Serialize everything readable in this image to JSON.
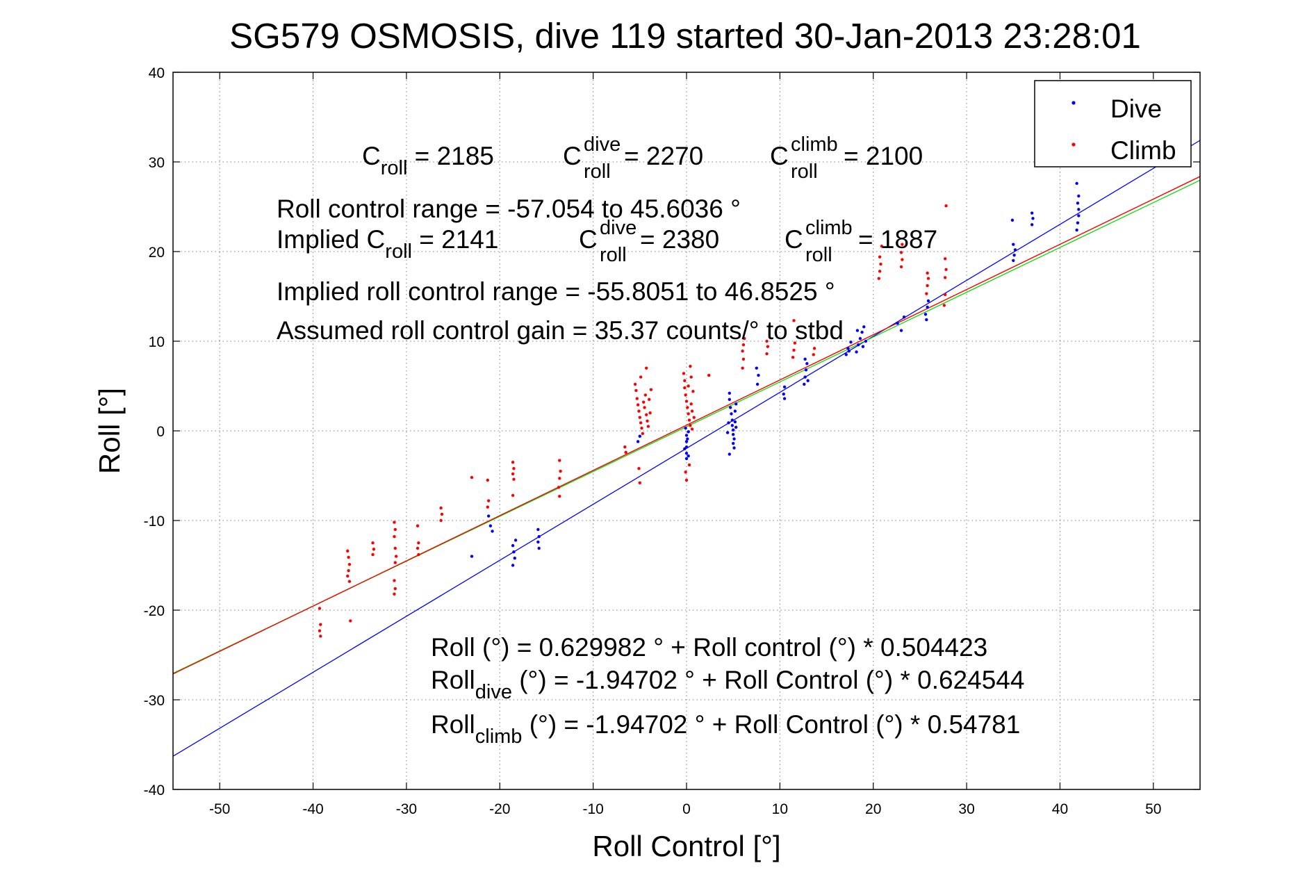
{
  "chart_data": {
    "type": "scatter",
    "title": "SG579 OSMOSIS, dive 119 started 30-Jan-2013 23:28:01",
    "xlabel": "Roll Control [°]",
    "ylabel": "Roll [°]",
    "xlim": [
      -55,
      55
    ],
    "ylim": [
      -40,
      40
    ],
    "xticks": [
      -50,
      -40,
      -30,
      -20,
      -10,
      0,
      10,
      20,
      30,
      40,
      50
    ],
    "yticks": [
      -40,
      -30,
      -20,
      -10,
      0,
      10,
      20,
      30,
      40
    ],
    "grid": true,
    "legend": {
      "position": "top-right",
      "entries": [
        {
          "label": "Dive",
          "color": "#0000ff"
        },
        {
          "label": "Climb",
          "color": "#ff0000"
        }
      ]
    },
    "series": [
      {
        "name": "Dive",
        "color": "#0000ff",
        "points": [
          [
            -23,
            -14
          ],
          [
            -21.2,
            -9.5
          ],
          [
            -21,
            -10.6
          ],
          [
            -20.8,
            -11.2
          ],
          [
            -18.6,
            -12.8
          ],
          [
            -18.5,
            -13.5
          ],
          [
            -18.4,
            -14.2
          ],
          [
            -18.6,
            -15.0
          ],
          [
            -18.3,
            -12.2
          ],
          [
            -15.9,
            -11.0
          ],
          [
            -15.8,
            -11.8
          ],
          [
            -15.9,
            -12.4
          ],
          [
            -15.8,
            -13.1
          ],
          [
            -5.2,
            -1.2
          ],
          [
            -5.0,
            -0.6
          ],
          [
            0,
            -0.5
          ],
          [
            0,
            -1.2
          ],
          [
            0,
            -1.8
          ],
          [
            0,
            -2.5
          ],
          [
            0,
            -3.1
          ],
          [
            -0.2,
            -2.0
          ],
          [
            0.2,
            -2.8
          ],
          [
            0.1,
            -0.9
          ],
          [
            -0.1,
            0.3
          ],
          [
            0.2,
            -0.1
          ],
          [
            4.6,
            4.2
          ],
          [
            4.6,
            3.5
          ],
          [
            4.7,
            2.6
          ],
          [
            4.8,
            1.9
          ],
          [
            4.9,
            1.2
          ],
          [
            4.9,
            0.6
          ],
          [
            5.0,
            0.1
          ],
          [
            5.0,
            -0.4
          ],
          [
            5.1,
            -0.9
          ],
          [
            5.0,
            -1.4
          ],
          [
            5.1,
            -1.9
          ],
          [
            5.2,
            2.2
          ],
          [
            5.2,
            1.0
          ],
          [
            5.3,
            0.4
          ],
          [
            4.4,
            -0.2
          ],
          [
            4.5,
            0.9
          ],
          [
            4.6,
            -2.6
          ],
          [
            5.3,
            3.0
          ],
          [
            7.6,
            5.2
          ],
          [
            7.7,
            6.2
          ],
          [
            7.5,
            7.0
          ],
          [
            10.4,
            4.1
          ],
          [
            10.5,
            4.9
          ],
          [
            10.5,
            3.6
          ],
          [
            12.6,
            5.2
          ],
          [
            12.7,
            6.0
          ],
          [
            12.8,
            6.8
          ],
          [
            12.9,
            7.5
          ],
          [
            12.7,
            8.0
          ],
          [
            13.0,
            5.6
          ],
          [
            17.1,
            8.5
          ],
          [
            17.3,
            9.2
          ],
          [
            17.6,
            9.9
          ],
          [
            17.4,
            8.9
          ],
          [
            18.2,
            8.8
          ],
          [
            18.4,
            9.6
          ],
          [
            18.6,
            10.3
          ],
          [
            18.8,
            11.0
          ],
          [
            19.0,
            11.6
          ],
          [
            18.3,
            11.2
          ],
          [
            18.9,
            9.4
          ],
          [
            19.2,
            10.0
          ],
          [
            22.6,
            12.0
          ],
          [
            23.0,
            11.2
          ],
          [
            23.3,
            12.7
          ],
          [
            25.6,
            13.0
          ],
          [
            25.8,
            13.8
          ],
          [
            25.9,
            14.5
          ],
          [
            25.7,
            12.4
          ],
          [
            35.0,
            19.0
          ],
          [
            35.1,
            19.6
          ],
          [
            35.2,
            20.2
          ],
          [
            35.0,
            20.8
          ],
          [
            34.9,
            23.5
          ],
          [
            37.0,
            23.0
          ],
          [
            37.1,
            23.7
          ],
          [
            37.0,
            24.3
          ],
          [
            41.8,
            22.4
          ],
          [
            41.9,
            23.2
          ],
          [
            42.0,
            24.0
          ],
          [
            42.0,
            24.7
          ],
          [
            41.9,
            25.4
          ],
          [
            42.0,
            26.2
          ],
          [
            41.8,
            27.6
          ]
        ]
      },
      {
        "name": "Climb",
        "color": "#ff0000",
        "points": [
          [
            -39.3,
            -19.8
          ],
          [
            -39.2,
            -21.6
          ],
          [
            -39.3,
            -22.3
          ],
          [
            -39.2,
            -22.9
          ],
          [
            -36.3,
            -13.4
          ],
          [
            -36.2,
            -14.1
          ],
          [
            -36.1,
            -14.9
          ],
          [
            -36.2,
            -15.6
          ],
          [
            -36.3,
            -16.2
          ],
          [
            -36.1,
            -16.8
          ],
          [
            -36.0,
            -21.2
          ],
          [
            -33.6,
            -12.5
          ],
          [
            -33.5,
            -13.2
          ],
          [
            -33.6,
            -13.8
          ],
          [
            -31.3,
            -10.2
          ],
          [
            -31.2,
            -11.0
          ],
          [
            -31.3,
            -11.8
          ],
          [
            -31.2,
            -13.1
          ],
          [
            -31.1,
            -14.0
          ],
          [
            -31.2,
            -14.7
          ],
          [
            -31.3,
            -16.7
          ],
          [
            -31.2,
            -17.6
          ],
          [
            -31.3,
            -18.2
          ],
          [
            -28.8,
            -10.6
          ],
          [
            -28.7,
            -12.5
          ],
          [
            -28.8,
            -13.1
          ],
          [
            -28.7,
            -13.8
          ],
          [
            -26.3,
            -8.6
          ],
          [
            -26.2,
            -9.3
          ],
          [
            -26.3,
            -10.0
          ],
          [
            -23.0,
            -5.2
          ],
          [
            -21.3,
            -5.5
          ],
          [
            -21.2,
            -7.8
          ],
          [
            -21.3,
            -8.5
          ],
          [
            -18.6,
            -3.5
          ],
          [
            -18.5,
            -4.2
          ],
          [
            -18.6,
            -4.8
          ],
          [
            -18.5,
            -5.4
          ],
          [
            -18.6,
            -7.2
          ],
          [
            -13.6,
            -3.3
          ],
          [
            -13.5,
            -4.5
          ],
          [
            -13.6,
            -5.3
          ],
          [
            -13.7,
            -6.3
          ],
          [
            -13.6,
            -7.3
          ],
          [
            -6.6,
            -1.8
          ],
          [
            -6.5,
            -2.4
          ],
          [
            -5.5,
            5.2
          ],
          [
            -5.4,
            4.5
          ],
          [
            -5.3,
            3.6
          ],
          [
            -5.2,
            2.9
          ],
          [
            -5.1,
            2.2
          ],
          [
            -5.0,
            1.5
          ],
          [
            -4.9,
            0.9
          ],
          [
            -4.8,
            0.3
          ],
          [
            -4.7,
            -0.3
          ],
          [
            -4.6,
            3.2
          ],
          [
            -4.5,
            2.6
          ],
          [
            -4.4,
            4.0
          ],
          [
            -4.3,
            1.8
          ],
          [
            -4.2,
            1.1
          ],
          [
            -4.1,
            0.5
          ],
          [
            -4.0,
            3.5
          ],
          [
            -4.3,
            7.0
          ],
          [
            -5.1,
            -4.2
          ],
          [
            -5.0,
            -5.8
          ],
          [
            -4.9,
            6.0
          ],
          [
            -3.9,
            2.0
          ],
          [
            -3.8,
            4.6
          ],
          [
            -0.3,
            6.4
          ],
          [
            -0.2,
            5.6
          ],
          [
            -0.2,
            4.8
          ],
          [
            -0.1,
            4.0
          ],
          [
            0.0,
            3.3
          ],
          [
            0.1,
            2.6
          ],
          [
            0.2,
            1.9
          ],
          [
            0.3,
            1.2
          ],
          [
            0.4,
            0.6
          ],
          [
            0.5,
            3.0
          ],
          [
            0.6,
            2.2
          ],
          [
            0.7,
            4.4
          ],
          [
            0.8,
            1.5
          ],
          [
            0.4,
            7.2
          ],
          [
            -0.1,
            -4.6
          ],
          [
            0.0,
            -5.5
          ],
          [
            0.3,
            -3.8
          ],
          [
            0.2,
            5.0
          ],
          [
            0.6,
            0.2
          ],
          [
            0.5,
            6.0
          ],
          [
            2.4,
            6.2
          ],
          [
            6.0,
            7.0
          ],
          [
            6.1,
            8.0
          ],
          [
            6.0,
            8.9
          ],
          [
            6.1,
            9.6
          ],
          [
            6.2,
            10.3
          ],
          [
            8.6,
            8.6
          ],
          [
            8.7,
            9.4
          ],
          [
            8.6,
            10.0
          ],
          [
            11.4,
            8.2
          ],
          [
            11.5,
            9.0
          ],
          [
            11.6,
            9.8
          ],
          [
            11.5,
            12.3
          ],
          [
            13.6,
            8.5
          ],
          [
            13.7,
            9.2
          ],
          [
            20.6,
            17.0
          ],
          [
            20.7,
            17.8
          ],
          [
            20.8,
            18.6
          ],
          [
            20.7,
            19.4
          ],
          [
            20.9,
            20.6
          ],
          [
            23.0,
            18.3
          ],
          [
            23.1,
            19.1
          ],
          [
            23.0,
            19.9
          ],
          [
            23.1,
            20.8
          ],
          [
            25.7,
            15.3
          ],
          [
            25.8,
            16.2
          ],
          [
            25.9,
            17.0
          ],
          [
            25.8,
            17.6
          ],
          [
            27.6,
            14.0
          ],
          [
            27.7,
            15.2
          ],
          [
            27.7,
            17.1
          ],
          [
            27.8,
            18.0
          ],
          [
            27.7,
            19.2
          ],
          [
            27.8,
            25.1
          ]
        ]
      }
    ],
    "fit_lines": [
      {
        "color": "#ff0000",
        "intercept": 0.629982,
        "slope": 0.504423
      },
      {
        "color": "#0000ff",
        "intercept": -1.94702,
        "slope": 0.624544
      },
      {
        "color": "#00e000",
        "intercept": 0.46,
        "slope": 0.5
      },
      {
        "color": "#ff0000",
        "intercept": 0.629982,
        "slope": 0.504423
      }
    ],
    "annotations": {
      "line1": [
        {
          "base": "C",
          "sub": "roll",
          "tail": " = 2185"
        },
        {
          "base": "C",
          "sup": "dive",
          "sub": "roll",
          "tail": " = 2270"
        },
        {
          "base": "C",
          "sup": "climb",
          "sub": "roll",
          "tail": " = 2100"
        }
      ],
      "control_range": "Roll control range = -57.054 to 45.6036 °",
      "implied_prefix": "Implied C",
      "implied_sub": "roll",
      "implied_tail": " = 2141",
      "implied_dive": {
        "base": "C",
        "sup": "dive",
        "sub": "roll",
        "tail": " = 2380"
      },
      "implied_climb": {
        "base": "C",
        "sup": "climb",
        "sub": "roll",
        "tail": " = 1887"
      },
      "implied_range": "Implied roll control range = -55.8051 to 46.8525 °",
      "gain": "Assumed roll control gain = 35.37 counts/° to stbd",
      "eq1": "Roll (°) = 0.629982 ° + Roll control (°) * 0.504423",
      "eq2_base": "Roll",
      "eq2_sub": "dive",
      "eq2_tail": " (°) = -1.94702 ° + Roll Control (°) * 0.624544",
      "eq3_base": "Roll",
      "eq3_sub": "climb",
      "eq3_tail": " (°) = -1.94702 ° + Roll Control (°) * 0.54781"
    }
  }
}
